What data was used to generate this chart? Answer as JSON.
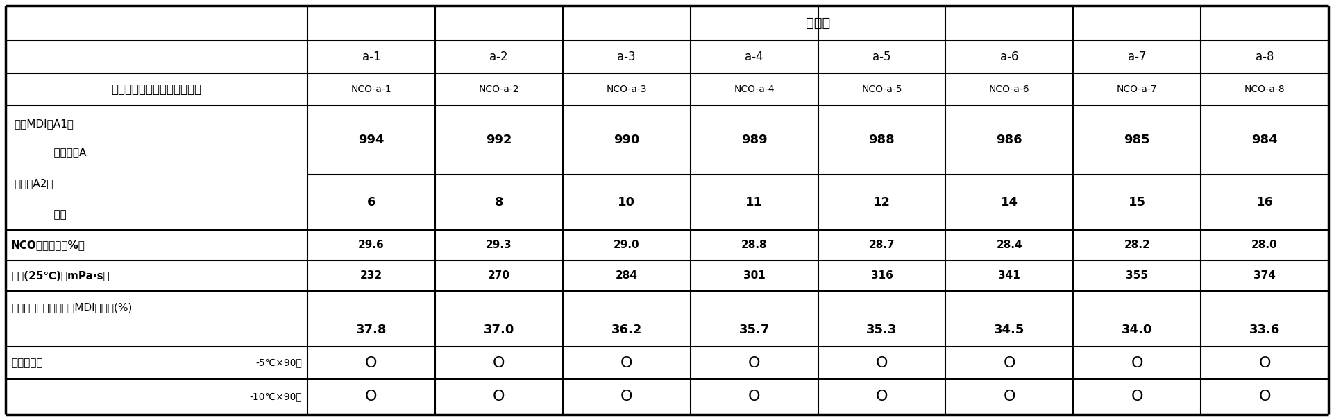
{
  "title": "实施例",
  "col_headers": [
    "a-1",
    "a-2",
    "a-3",
    "a-4",
    "a-5",
    "a-6",
    "a-7",
    "a-8"
  ],
  "nco_labels": [
    "NCO-a-1",
    "NCO-a-2",
    "NCO-a-3",
    "NCO-a-4",
    "NCO-a-5",
    "NCO-a-6",
    "NCO-a-7",
    "NCO-a-8"
  ],
  "row1_label": "多异氰酸酯组合物（质量份）",
  "row2_label_line1": "聚合MDI（A1）",
  "row2_label_line2": "    异氰酸酯A",
  "row3_label_line1": "醇类（A2）",
  "row3_label_line2": "    甲醇",
  "row4_label": "NCO含量（质量%）",
  "row5_label": "粘度(25℃)（mPa·s）",
  "row6_label": "多异氰酸酯组合物中的MDI的比例(%)",
  "row7_label": "储存稳定性",
  "row7_cond1": "-5℃×90天",
  "row7_cond2": "-10℃×90天",
  "data_row2": [
    "994",
    "992",
    "990",
    "989",
    "988",
    "986",
    "985",
    "984"
  ],
  "data_row3": [
    "6",
    "8",
    "10",
    "11",
    "12",
    "14",
    "15",
    "16"
  ],
  "data_row4": [
    "29.6",
    "29.3",
    "29.0",
    "28.8",
    "28.7",
    "28.4",
    "28.2",
    "28.0"
  ],
  "data_row5": [
    "232",
    "270",
    "284",
    "301",
    "316",
    "341",
    "355",
    "374"
  ],
  "data_row6": [
    "37.8",
    "37.0",
    "36.2",
    "35.7",
    "35.3",
    "34.5",
    "34.0",
    "33.6"
  ],
  "circle_char": "O",
  "bg_color": "#ffffff",
  "text_color": "#000000",
  "line_color": "#000000"
}
